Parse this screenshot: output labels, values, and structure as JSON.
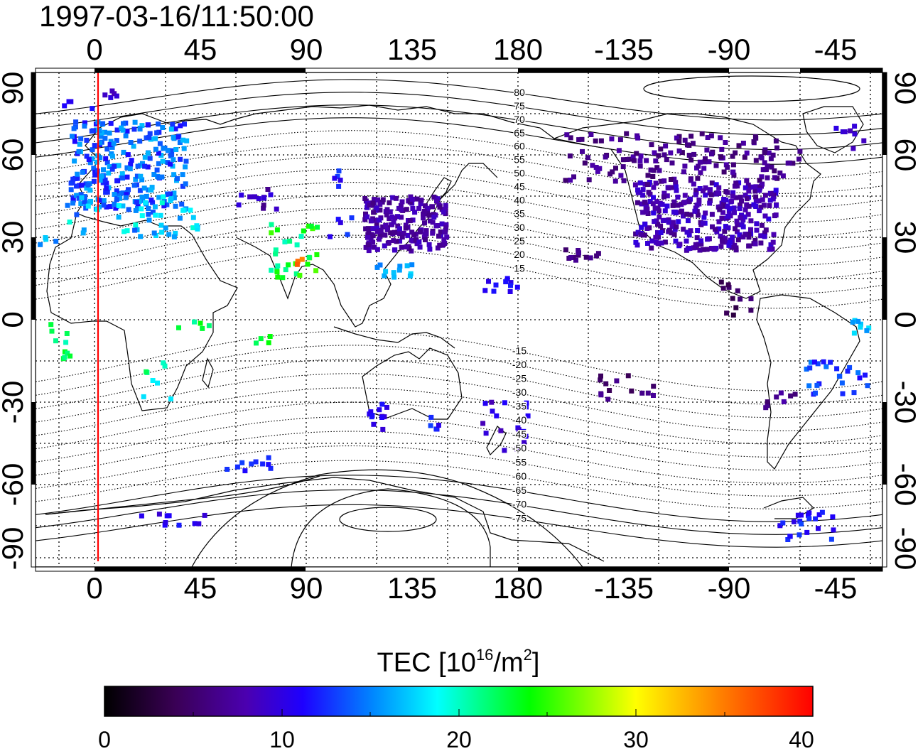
{
  "title": "1997-03-16/11:50:00",
  "map": {
    "lon_labels_top": [
      "0",
      "45",
      "90",
      "135",
      "180",
      "-135",
      "-90",
      "-45"
    ],
    "lon_labels_bottom": [
      "0",
      "45",
      "90",
      "135",
      "180",
      "-135",
      "-90",
      "-45"
    ],
    "lat_labels_left": [
      "90",
      "60",
      "30",
      "0",
      "-30",
      "-60",
      "-90"
    ],
    "lat_labels_right": [
      "90",
      "60",
      "30",
      "0",
      "-30",
      "-60",
      "-90"
    ],
    "magnetic_lat_labels": [
      "80",
      "75",
      "70",
      "65",
      "60",
      "55",
      "50",
      "45",
      "40",
      "35",
      "30",
      "25",
      "20",
      "15",
      "-15",
      "-20",
      "-25",
      "-30",
      "-35",
      "-40",
      "-45",
      "-50",
      "-55",
      "-60",
      "-65",
      "-70",
      "-75"
    ],
    "terminator_color": "#ff0000",
    "gridline_color": "#000000"
  },
  "colorbar": {
    "label_prefix": "TEC  [10",
    "label_exp": "16",
    "label_mid": "/m",
    "label_exp2": "2",
    "label_suffix": "]",
    "tick_labels": [
      "0",
      "10",
      "20",
      "30",
      "40"
    ],
    "colors": [
      "#000000",
      "#4a0080",
      "#0000ff",
      "#00ffff",
      "#00ff00",
      "#ffff00",
      "#ff8000",
      "#ff0000"
    ]
  }
}
